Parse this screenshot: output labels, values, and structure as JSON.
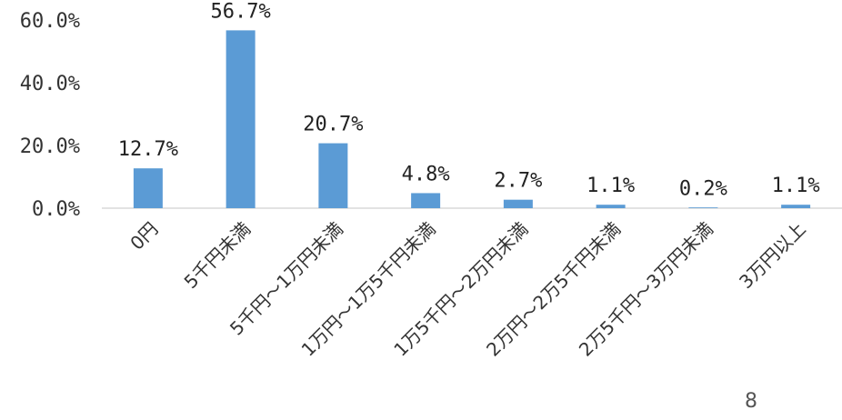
{
  "chart_data": {
    "type": "bar",
    "categories": [
      "0円",
      "5千円未満",
      "5千円～1万円未満",
      "1万円～1万5千円未満",
      "1万5千円～2万円未満",
      "2万円～2万5千円未満",
      "2万5千円～3万円未満",
      "3万円以上"
    ],
    "values": [
      12.7,
      56.7,
      20.7,
      4.8,
      2.7,
      1.1,
      0.2,
      1.1
    ],
    "data_labels": [
      "12.7%",
      "56.7%",
      "20.7%",
      "4.8%",
      "2.7%",
      "1.1%",
      "0.2%",
      "1.1%"
    ],
    "y_ticks": [
      0,
      20,
      40,
      60
    ],
    "y_tick_labels": [
      "0.0%",
      "20.0%",
      "40.0%",
      "60.0%"
    ],
    "ylim": [
      0,
      60
    ],
    "title": "",
    "xlabel": "",
    "ylabel": "",
    "grid": false,
    "legend": "none",
    "colors": {
      "bar": "#5b9bd5",
      "axis": "#d9d9d9"
    }
  },
  "page_number": "8"
}
